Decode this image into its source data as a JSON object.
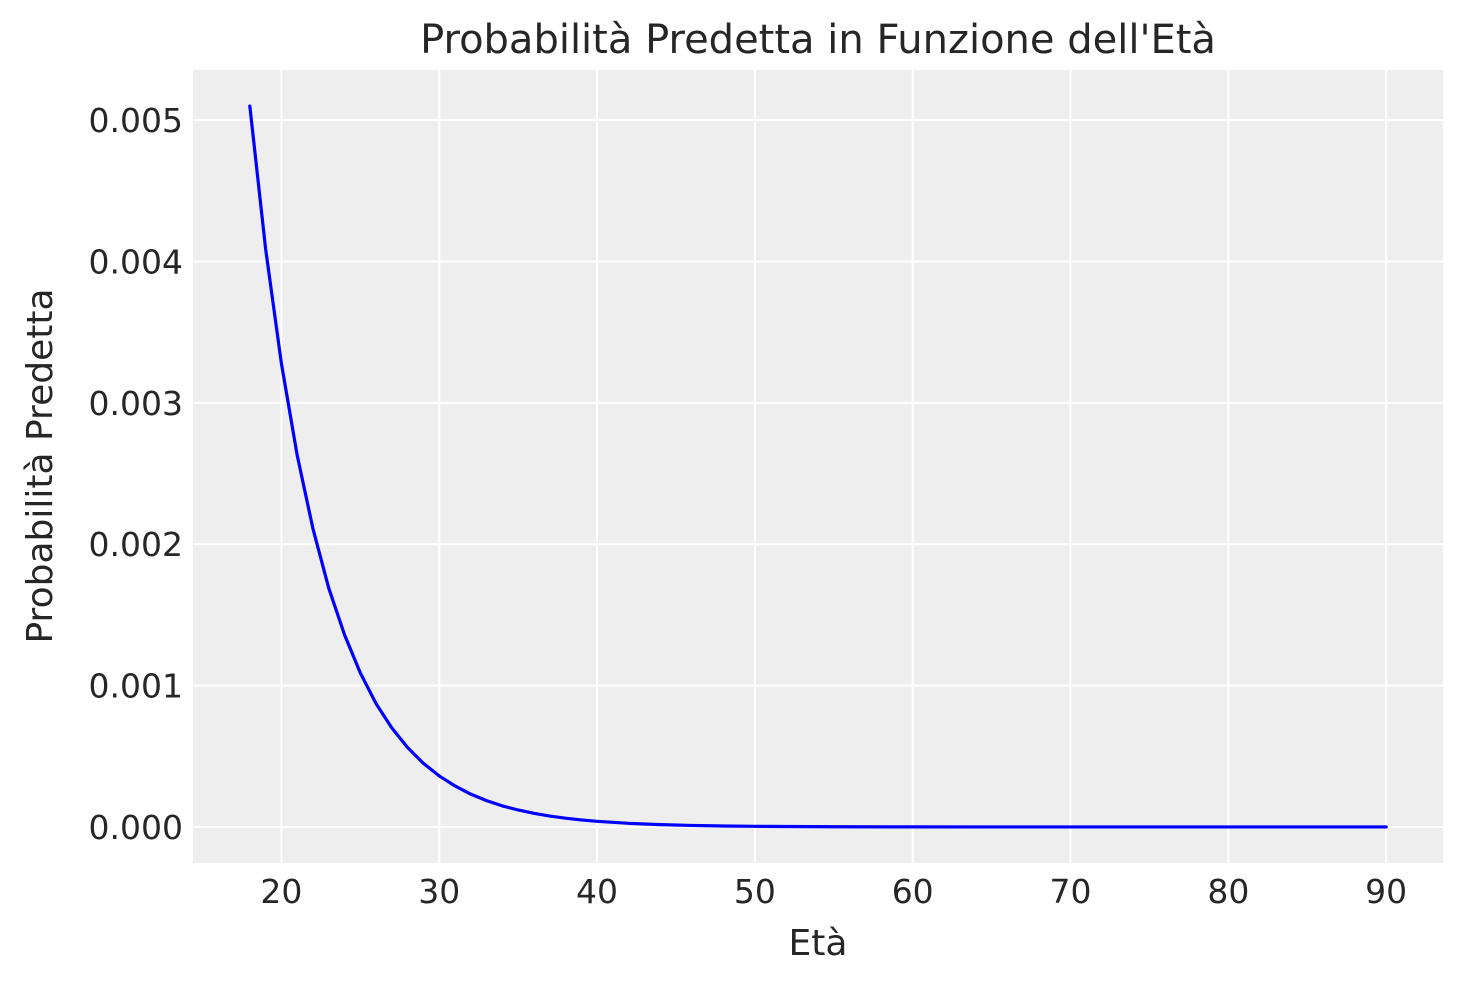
{
  "chart_data": {
    "type": "line",
    "title": "Probabilità Predetta in Funzione dell'Età",
    "xlabel": "Età",
    "ylabel": "Probabilità Predetta",
    "xlim": [
      14.4,
      93.6
    ],
    "ylim": [
      -0.000255,
      0.005355
    ],
    "xticks": [
      20,
      30,
      40,
      50,
      60,
      70,
      80,
      90
    ],
    "xtick_labels": [
      "20",
      "30",
      "40",
      "50",
      "60",
      "70",
      "80",
      "90"
    ],
    "yticks": [
      0.0,
      0.001,
      0.002,
      0.003,
      0.004,
      0.005
    ],
    "ytick_labels": [
      "0.000",
      "0.001",
      "0.002",
      "0.003",
      "0.004",
      "0.005"
    ],
    "grid": true,
    "legend": "none",
    "series": [
      {
        "color": "#0000ff",
        "x": [
          18,
          19,
          20,
          21,
          22,
          23,
          24,
          25,
          26,
          27,
          28,
          29,
          30,
          31,
          32,
          33,
          34,
          35,
          36,
          37,
          38,
          39,
          40,
          42,
          44,
          46,
          48,
          50,
          55,
          60,
          65,
          70,
          75,
          80,
          85,
          90
        ],
        "y": [
          0.0051,
          0.00409,
          0.00328,
          0.00263,
          0.00211,
          0.00169,
          0.00136,
          0.00109,
          0.000872,
          0.0007,
          0.000561,
          0.00045,
          0.000361,
          0.00029,
          0.000232,
          0.000186,
          0.000149,
          0.00012,
          9.62e-05,
          7.72e-05,
          6.19e-05,
          4.96e-05,
          3.98e-05,
          2.56e-05,
          1.65e-05,
          1.06e-05,
          6.8e-06,
          4.4e-06,
          1.4e-06,
          4e-07,
          1e-07,
          0.0,
          0.0,
          0.0,
          0.0,
          0.0
        ]
      }
    ]
  }
}
